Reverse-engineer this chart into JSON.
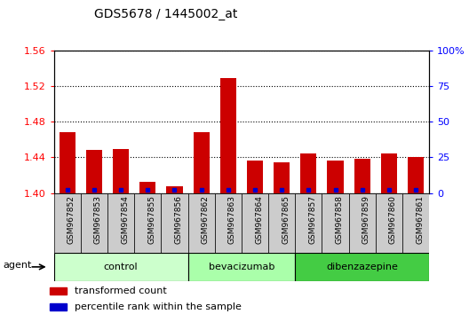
{
  "title": "GDS5678 / 1445002_at",
  "categories": [
    "GSM967852",
    "GSM967853",
    "GSM967854",
    "GSM967855",
    "GSM967856",
    "GSM967862",
    "GSM967863",
    "GSM967864",
    "GSM967865",
    "GSM967857",
    "GSM967858",
    "GSM967859",
    "GSM967860",
    "GSM967861"
  ],
  "values": [
    1.468,
    1.448,
    1.449,
    1.413,
    1.408,
    1.468,
    1.529,
    1.436,
    1.434,
    1.444,
    1.436,
    1.438,
    1.444,
    1.44
  ],
  "percentile_values": [
    2,
    2,
    2,
    2,
    2,
    2,
    2,
    2,
    2,
    2,
    2,
    2,
    2,
    2
  ],
  "bar_color": "#cc0000",
  "percentile_color": "#0000cc",
  "ylim_left": [
    1.4,
    1.56
  ],
  "ylim_right": [
    0,
    100
  ],
  "yticks_left": [
    1.4,
    1.44,
    1.48,
    1.52,
    1.56
  ],
  "yticks_right": [
    0,
    25,
    50,
    75,
    100
  ],
  "ytick_labels_right": [
    "0",
    "25",
    "50",
    "75",
    "100%"
  ],
  "groups": [
    {
      "label": "control",
      "start": 0,
      "end": 5,
      "color": "#ccffcc"
    },
    {
      "label": "bevacizumab",
      "start": 5,
      "end": 9,
      "color": "#aaffaa"
    },
    {
      "label": "dibenzazepine",
      "start": 9,
      "end": 14,
      "color": "#44cc44"
    }
  ],
  "xtick_bg_color": "#cccccc",
  "legend": [
    {
      "label": "transformed count",
      "color": "#cc0000"
    },
    {
      "label": "percentile rank within the sample",
      "color": "#0000cc"
    }
  ],
  "bar_width": 0.6
}
